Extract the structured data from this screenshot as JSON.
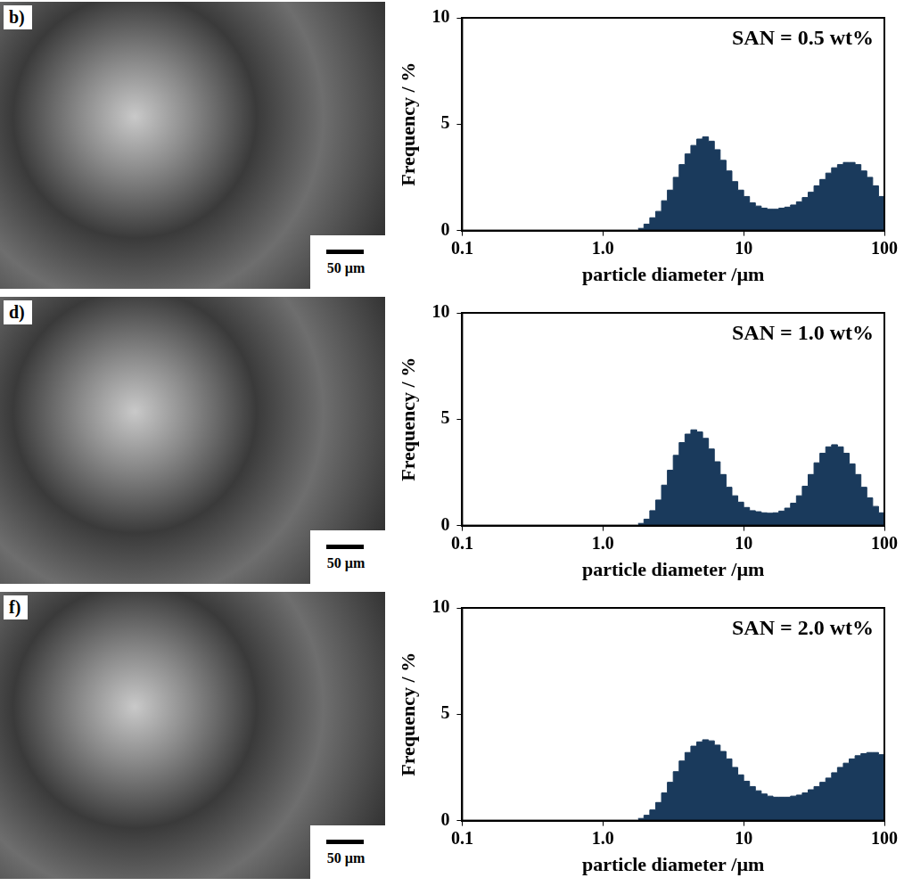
{
  "images": [
    {
      "label": "b)",
      "scale_bar": "50 µm"
    },
    {
      "label": "d)",
      "scale_bar": "50 µm"
    },
    {
      "label": "f)",
      "scale_bar": "50 µm"
    }
  ],
  "chart_data": [
    {
      "type": "histogram",
      "annotation": "SAN = 0.5 wt%",
      "x_label": "particle diameter /µm",
      "y_label": "Frequency / %",
      "bins": [
        1.778,
        1.957,
        2.154,
        2.371,
        2.61,
        2.873,
        3.162,
        3.481,
        3.831,
        4.217,
        4.642,
        5.109,
        5.623,
        6.19,
        6.813,
        7.499,
        8.254,
        9.085,
        10,
        11.007,
        12.115,
        13.335,
        14.678,
        16.156,
        17.783,
        19.573,
        21.544,
        23.714,
        26.102,
        28.73,
        31.623,
        34.807,
        38.312,
        42.17,
        46.416,
        51.09,
        56.234,
        61.897,
        68.129,
        74.989,
        82.54,
        90.851,
        100
      ],
      "values": [
        0.1,
        0.3,
        0.6,
        0.9,
        1.4,
        1.9,
        2.5,
        3.1,
        3.6,
        4.0,
        4.3,
        4.4,
        4.2,
        3.8,
        3.3,
        2.8,
        2.3,
        1.9,
        1.6,
        1.3,
        1.15,
        1.05,
        1.0,
        1.0,
        1.05,
        1.1,
        1.2,
        1.35,
        1.55,
        1.8,
        2.1,
        2.4,
        2.7,
        2.95,
        3.1,
        3.2,
        3.2,
        3.1,
        2.8,
        2.5,
        2.1,
        1.6
      ],
      "color": "#1a3a5c",
      "log": "x",
      "xlim": [
        0.1,
        100
      ],
      "xticks": [
        0.1,
        {
          "value": 1,
          "label": "1.0"
        },
        10,
        100
      ],
      "ylim": [
        0,
        10
      ],
      "yticks": [
        0,
        5,
        10
      ],
      "grid": false
    },
    {
      "type": "histogram",
      "annotation": "SAN = 1.0 wt%",
      "x_label": "particle diameter /µm",
      "y_label": "Frequency / %",
      "bins": [
        1.778,
        1.957,
        2.154,
        2.371,
        2.61,
        2.873,
        3.162,
        3.481,
        3.831,
        4.217,
        4.642,
        5.109,
        5.623,
        6.19,
        6.813,
        7.499,
        8.254,
        9.085,
        10,
        11.007,
        12.115,
        13.335,
        14.678,
        16.156,
        17.783,
        19.573,
        21.544,
        23.714,
        26.102,
        28.73,
        31.623,
        34.807,
        38.312,
        42.17,
        46.416,
        51.09,
        56.234,
        61.897,
        68.129,
        74.989,
        82.54,
        90.851,
        100
      ],
      "values": [
        0.1,
        0.3,
        0.7,
        1.2,
        1.9,
        2.6,
        3.3,
        3.9,
        4.3,
        4.5,
        4.4,
        4.1,
        3.6,
        3.0,
        2.4,
        1.8,
        1.4,
        1.1,
        0.85,
        0.7,
        0.65,
        0.6,
        0.58,
        0.6,
        0.68,
        0.82,
        1.05,
        1.4,
        1.85,
        2.4,
        2.95,
        3.4,
        3.7,
        3.8,
        3.7,
        3.4,
        2.9,
        2.4,
        1.8,
        1.3,
        0.9,
        0.6
      ],
      "color": "#1a3a5c",
      "log": "x",
      "xlim": [
        0.1,
        100
      ],
      "xticks": [
        0.1,
        {
          "value": 1,
          "label": "1.0"
        },
        10,
        100
      ],
      "ylim": [
        0,
        10
      ],
      "yticks": [
        0,
        5,
        10
      ],
      "grid": false
    },
    {
      "type": "histogram",
      "annotation": "SAN = 2.0 wt%",
      "x_label": "particle diameter /µm",
      "y_label": "Frequency / %",
      "bins": [
        1.778,
        1.957,
        2.154,
        2.371,
        2.61,
        2.873,
        3.162,
        3.481,
        3.831,
        4.217,
        4.642,
        5.109,
        5.623,
        6.19,
        6.813,
        7.499,
        8.254,
        9.085,
        10,
        11.007,
        12.115,
        13.335,
        14.678,
        16.156,
        17.783,
        19.573,
        21.544,
        23.714,
        26.102,
        28.73,
        31.623,
        34.807,
        38.312,
        42.17,
        46.416,
        51.09,
        56.234,
        61.897,
        68.129,
        74.989,
        82.54,
        90.851,
        100
      ],
      "values": [
        0.1,
        0.25,
        0.5,
        0.85,
        1.3,
        1.8,
        2.3,
        2.8,
        3.2,
        3.5,
        3.7,
        3.8,
        3.75,
        3.55,
        3.25,
        2.9,
        2.5,
        2.15,
        1.85,
        1.6,
        1.4,
        1.25,
        1.15,
        1.1,
        1.1,
        1.1,
        1.15,
        1.2,
        1.3,
        1.45,
        1.6,
        1.8,
        2.0,
        2.25,
        2.5,
        2.7,
        2.9,
        3.05,
        3.15,
        3.2,
        3.2,
        3.1
      ],
      "color": "#1a3a5c",
      "log": "x",
      "xlim": [
        0.1,
        100
      ],
      "xticks": [
        0.1,
        {
          "value": 1,
          "label": "1.0"
        },
        10,
        100
      ],
      "ylim": [
        0,
        10
      ],
      "yticks": [
        0,
        5,
        10
      ],
      "grid": false
    }
  ]
}
